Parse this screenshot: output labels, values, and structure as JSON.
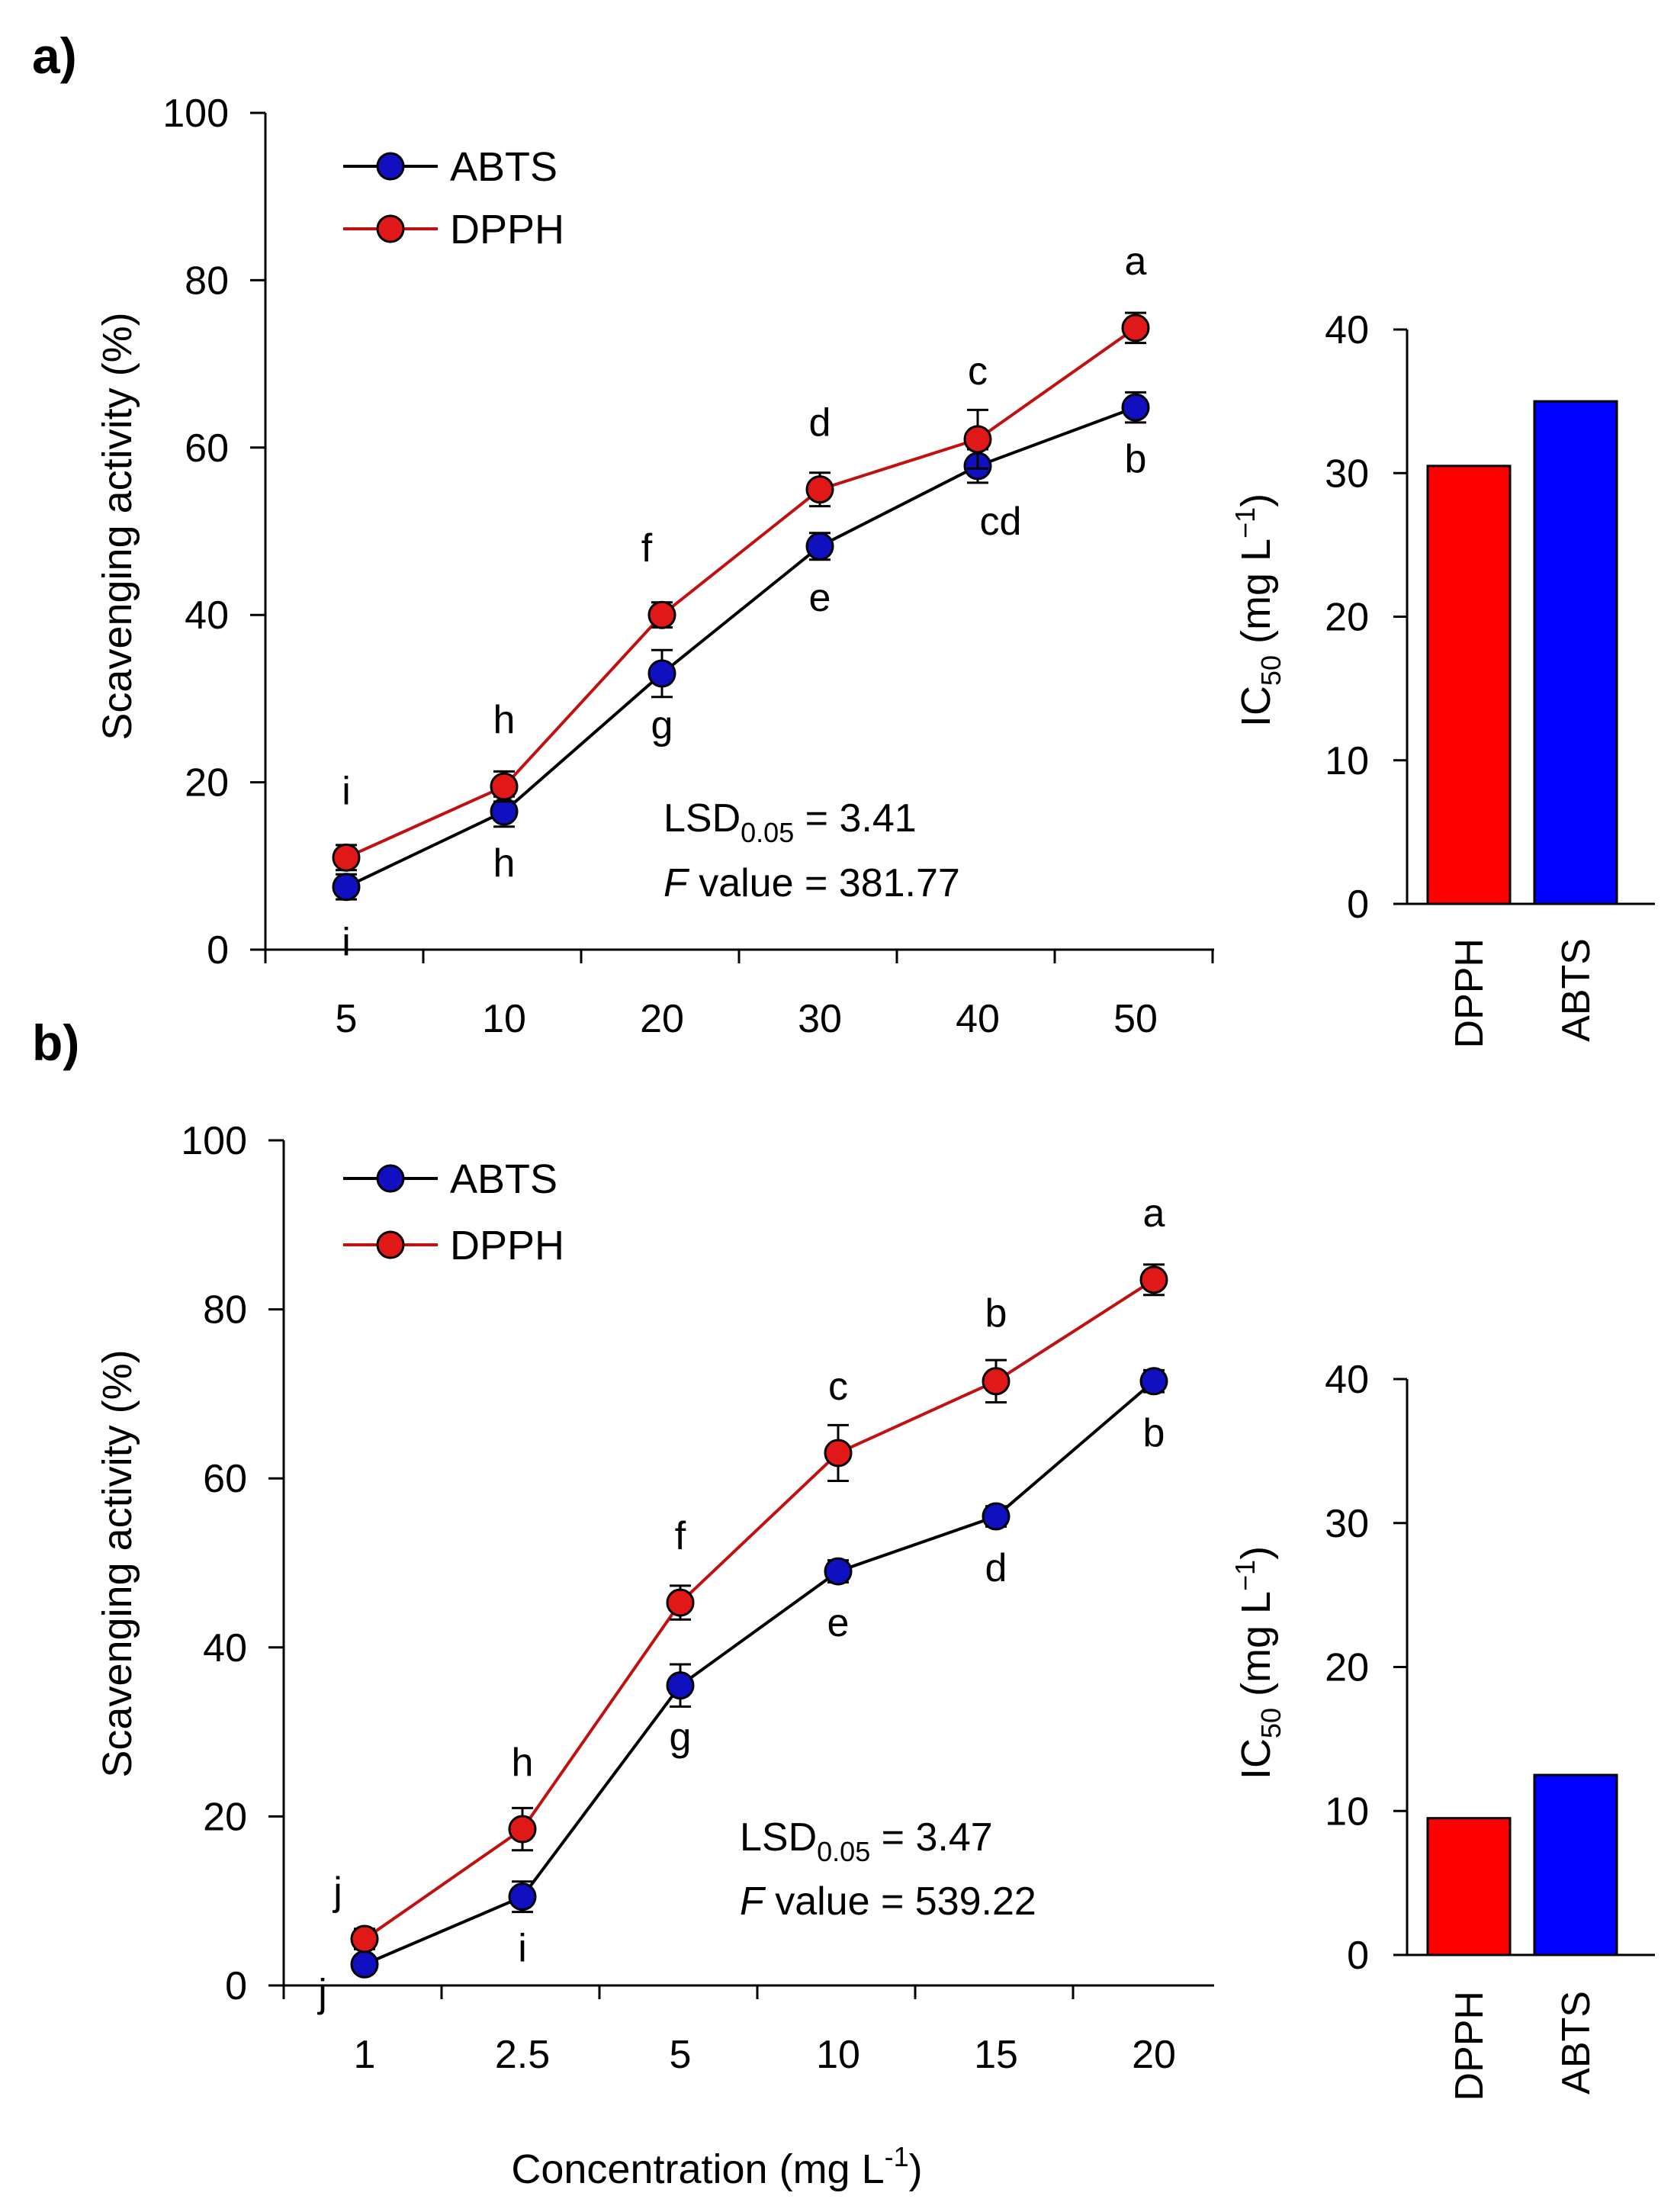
{
  "chart_data": [
    {
      "panel_label": "a)",
      "type": "line",
      "ylabel": "Scavenging activity (%)",
      "xlabel": "",
      "ylim": [
        0,
        100
      ],
      "y_ticks": [
        "0",
        "20",
        "40",
        "60",
        "80",
        "100"
      ],
      "categories": [
        "5",
        "10",
        "20",
        "30",
        "40",
        "50"
      ],
      "legend": [
        "ABTS",
        "DPPH"
      ],
      "legend_position": "top-left",
      "series": [
        {
          "name": "ABTS",
          "color": "#1010c0",
          "values": [
            7.5,
            16.5,
            33,
            48.2,
            57.8,
            64.8
          ],
          "errors": [
            1.5,
            1.8,
            2.8,
            1.6,
            2.0,
            1.8
          ],
          "letters": [
            "i",
            "h",
            "g",
            "e",
            "cd",
            "b"
          ]
        },
        {
          "name": "DPPH",
          "color": "#e01818",
          "values": [
            11,
            19.5,
            40,
            55,
            61,
            74.3
          ],
          "errors": [
            1.5,
            1.8,
            1.5,
            2.0,
            3.5,
            1.8
          ],
          "letters": [
            "i",
            "h",
            "f",
            "d",
            "c",
            "a"
          ]
        }
      ],
      "stats": {
        "lsd_prefix": "LSD",
        "lsd_sub": "0.05",
        "lsd_value": " = 3.41",
        "f_prefix": "F",
        "f_value": " value = 381.77"
      },
      "ic50": {
        "type": "bar",
        "ylabel_main": "IC",
        "ylabel_sub": "50",
        "ylabel_unit": " (mg L",
        "ylabel_sup": "−1",
        "ylabel_close": ")",
        "ylim": [
          0,
          40
        ],
        "y_ticks": [
          "0",
          "10",
          "20",
          "30",
          "40"
        ],
        "categories": [
          "DPPH",
          "ABTS"
        ],
        "values": [
          30.5,
          35
        ],
        "colors": [
          "#ff0000",
          "#0000ff"
        ]
      }
    },
    {
      "panel_label": "b)",
      "type": "line",
      "ylabel": "Scavenging activity (%)",
      "xlabel_main": "Concentration (mg L",
      "xlabel_sup": "-1",
      "xlabel_close": ")",
      "ylim": [
        0,
        100
      ],
      "y_ticks": [
        "0",
        "20",
        "40",
        "60",
        "80",
        "100"
      ],
      "categories": [
        "1",
        "2.5",
        "5",
        "10",
        "15",
        "20"
      ],
      "legend": [
        "ABTS",
        "DPPH"
      ],
      "legend_position": "top-left",
      "series": [
        {
          "name": "ABTS",
          "color": "#1010c0",
          "values": [
            2.5,
            10.5,
            35.5,
            49,
            55.5,
            71.5
          ],
          "errors": [
            1.0,
            1.8,
            2.5,
            1.3,
            1.2,
            1.3
          ],
          "letters": [
            "j",
            "i",
            "g",
            "e",
            "d",
            "b"
          ]
        },
        {
          "name": "DPPH",
          "color": "#e01818",
          "values": [
            5.5,
            18.5,
            45.3,
            63,
            71.5,
            83.5
          ],
          "errors": [
            1.2,
            2.5,
            2.0,
            3.3,
            2.5,
            1.8
          ],
          "letters": [
            "j",
            "h",
            "f",
            "c",
            "b",
            "a"
          ]
        }
      ],
      "stats": {
        "lsd_prefix": "LSD",
        "lsd_sub": "0.05",
        "lsd_value": " = 3.47",
        "f_prefix": "F",
        "f_value": " value = 539.22"
      },
      "ic50": {
        "type": "bar",
        "ylabel_main": "IC",
        "ylabel_sub": "50",
        "ylabel_unit": " (mg L",
        "ylabel_sup": "−1",
        "ylabel_close": ")",
        "ylim": [
          0,
          40
        ],
        "y_ticks": [
          "0",
          "10",
          "20",
          "30",
          "40"
        ],
        "categories": [
          "DPPH",
          "ABTS"
        ],
        "values": [
          9.5,
          12.5
        ],
        "colors": [
          "#ff0000",
          "#0000ff"
        ]
      }
    }
  ]
}
